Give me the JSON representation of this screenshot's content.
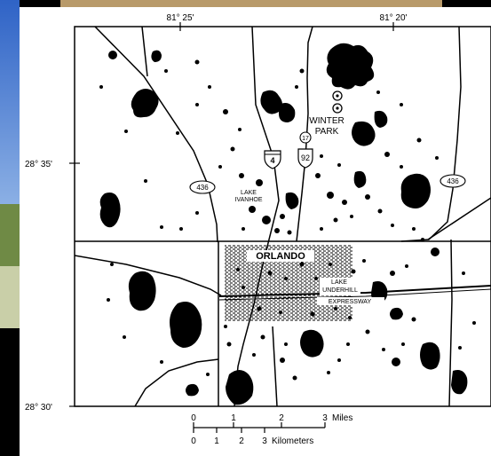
{
  "map": {
    "graticule": {
      "longitude_labels": [
        "81° 25'",
        "81° 20'"
      ],
      "latitude_labels": [
        "28° 35'",
        "28° 30'"
      ]
    },
    "places": {
      "winter_park_line1": "WINTER",
      "winter_park_line2": "PARK",
      "lake_ivanhoe_line1": "LAKE",
      "lake_ivanhoe_line2": "IVANHOE",
      "orlando": "ORLANDO",
      "lake_underhill_line1": "LAKE",
      "lake_underhill_line2": "UNDERHILL",
      "expressway": "EXPRESSWAY"
    },
    "road_shields": {
      "interstate": "4",
      "us_route_top": "17",
      "us_route_bottom": "92",
      "state_route_west": "436",
      "state_route_east": "436"
    },
    "scale_bar": {
      "miles_ticks": [
        "0",
        "1",
        "2",
        "3"
      ],
      "miles_unit": "Miles",
      "km_ticks": [
        "0",
        "1",
        "2",
        "3"
      ],
      "km_unit": "Kilometers"
    },
    "colors": {
      "ink": "#000000",
      "paper": "#ffffff"
    }
  }
}
